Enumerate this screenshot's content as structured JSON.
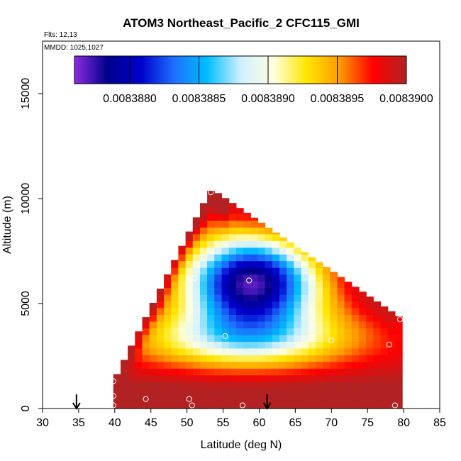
{
  "chart_data": {
    "type": "heatmap",
    "title": "ATOM3 Northeast_Pacific_2 CFC115_GMI",
    "flights_label": "Flts: 12,13",
    "mmdd_label": "MMDD: 1025,1027",
    "xlabel": "Latitude (deg N)",
    "ylabel": "Altitude (m)",
    "xlim": [
      30,
      85
    ],
    "ylim": [
      0,
      17500
    ],
    "x_ticks": [
      30,
      35,
      40,
      45,
      50,
      55,
      60,
      65,
      70,
      75,
      80,
      85
    ],
    "x_tick_labels": [
      "30",
      "35",
      "40",
      "45",
      "50",
      "55",
      "60",
      "65",
      "70",
      "75",
      "80",
      "85"
    ],
    "y_ticks": [
      0,
      5000,
      10000,
      15000
    ],
    "y_tick_labels": [
      "0",
      "5000",
      "10000",
      "15000"
    ],
    "colorbar": {
      "range": [
        0.0083876,
        0.00839
      ],
      "ticks": [
        0.008388,
        0.0083885,
        0.008389,
        0.0083895,
        0.00839
      ],
      "tick_labels": [
        "0.0083880",
        "0.0083885",
        "0.0083890",
        "0.0083895",
        "0.0083900"
      ],
      "colors": [
        "#8b2be2",
        "#00008b",
        "#0000cd",
        "#1e6fff",
        "#00bfff",
        "#cfefff",
        "#ffffe0",
        "#ffe600",
        "#ff9900",
        "#ff0000",
        "#b22222"
      ]
    },
    "field_description_values": {
      "baseline_surface": 0.0083899,
      "core_min": 0.0083877,
      "core_lat": 59,
      "core_alt": 6000
    },
    "sample_points": [
      {
        "lat": 39.8,
        "alt": 1300
      },
      {
        "lat": 39.8,
        "alt": 600
      },
      {
        "lat": 39.8,
        "alt": 150
      },
      {
        "lat": 44.3,
        "alt": 450
      },
      {
        "lat": 50.3,
        "alt": 450
      },
      {
        "lat": 50.7,
        "alt": 150
      },
      {
        "lat": 57.7,
        "alt": 150
      },
      {
        "lat": 78.8,
        "alt": 150
      },
      {
        "lat": 55.3,
        "alt": 3450
      },
      {
        "lat": 70.0,
        "alt": 3250
      },
      {
        "lat": 78.0,
        "alt": 3050
      },
      {
        "lat": 79.5,
        "alt": 4250
      },
      {
        "lat": 51.0,
        "alt": 6200
      },
      {
        "lat": 58.6,
        "alt": 6100
      },
      {
        "lat": 53.3,
        "alt": 10300
      }
    ],
    "arrows": [
      {
        "lat": 34.7
      },
      {
        "lat": 61.1
      }
    ]
  }
}
